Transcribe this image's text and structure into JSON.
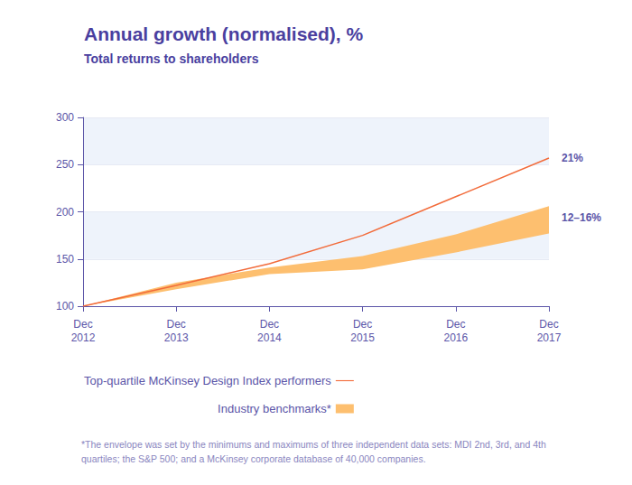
{
  "chart_data": {
    "type": "line",
    "title": "Annual growth (normalised), %",
    "subtitle": "Total returns to shareholders",
    "categories": [
      "Dec 2012",
      "Dec 2013",
      "Dec 2014",
      "Dec 2015",
      "Dec 2016",
      "Dec 2017"
    ],
    "series": [
      {
        "name": "Top-quartile McKinsey Design Index performers",
        "type": "line",
        "color": "#f26b3a",
        "values": [
          100,
          122,
          145,
          175,
          216,
          257
        ],
        "annotation": "21%"
      },
      {
        "name": "Industry benchmarks*",
        "type": "band",
        "color": "#fdbf6f",
        "lower": [
          100,
          118,
          134,
          139,
          157,
          177
        ],
        "upper": [
          100,
          125,
          141,
          153,
          176,
          206
        ],
        "annotation": "12–16%"
      }
    ],
    "ylim": [
      100,
      300
    ],
    "yticks": [
      100,
      150,
      200,
      250,
      300
    ],
    "grid": true,
    "legend": "bottom left",
    "footnote": "*The envelope was set by the minimums and maximums of three independent data sets: MDI 2nd, 3rd, and 4th quartiles; the S&P 500; and a McKinsey corporate database of 40,000 companies."
  }
}
